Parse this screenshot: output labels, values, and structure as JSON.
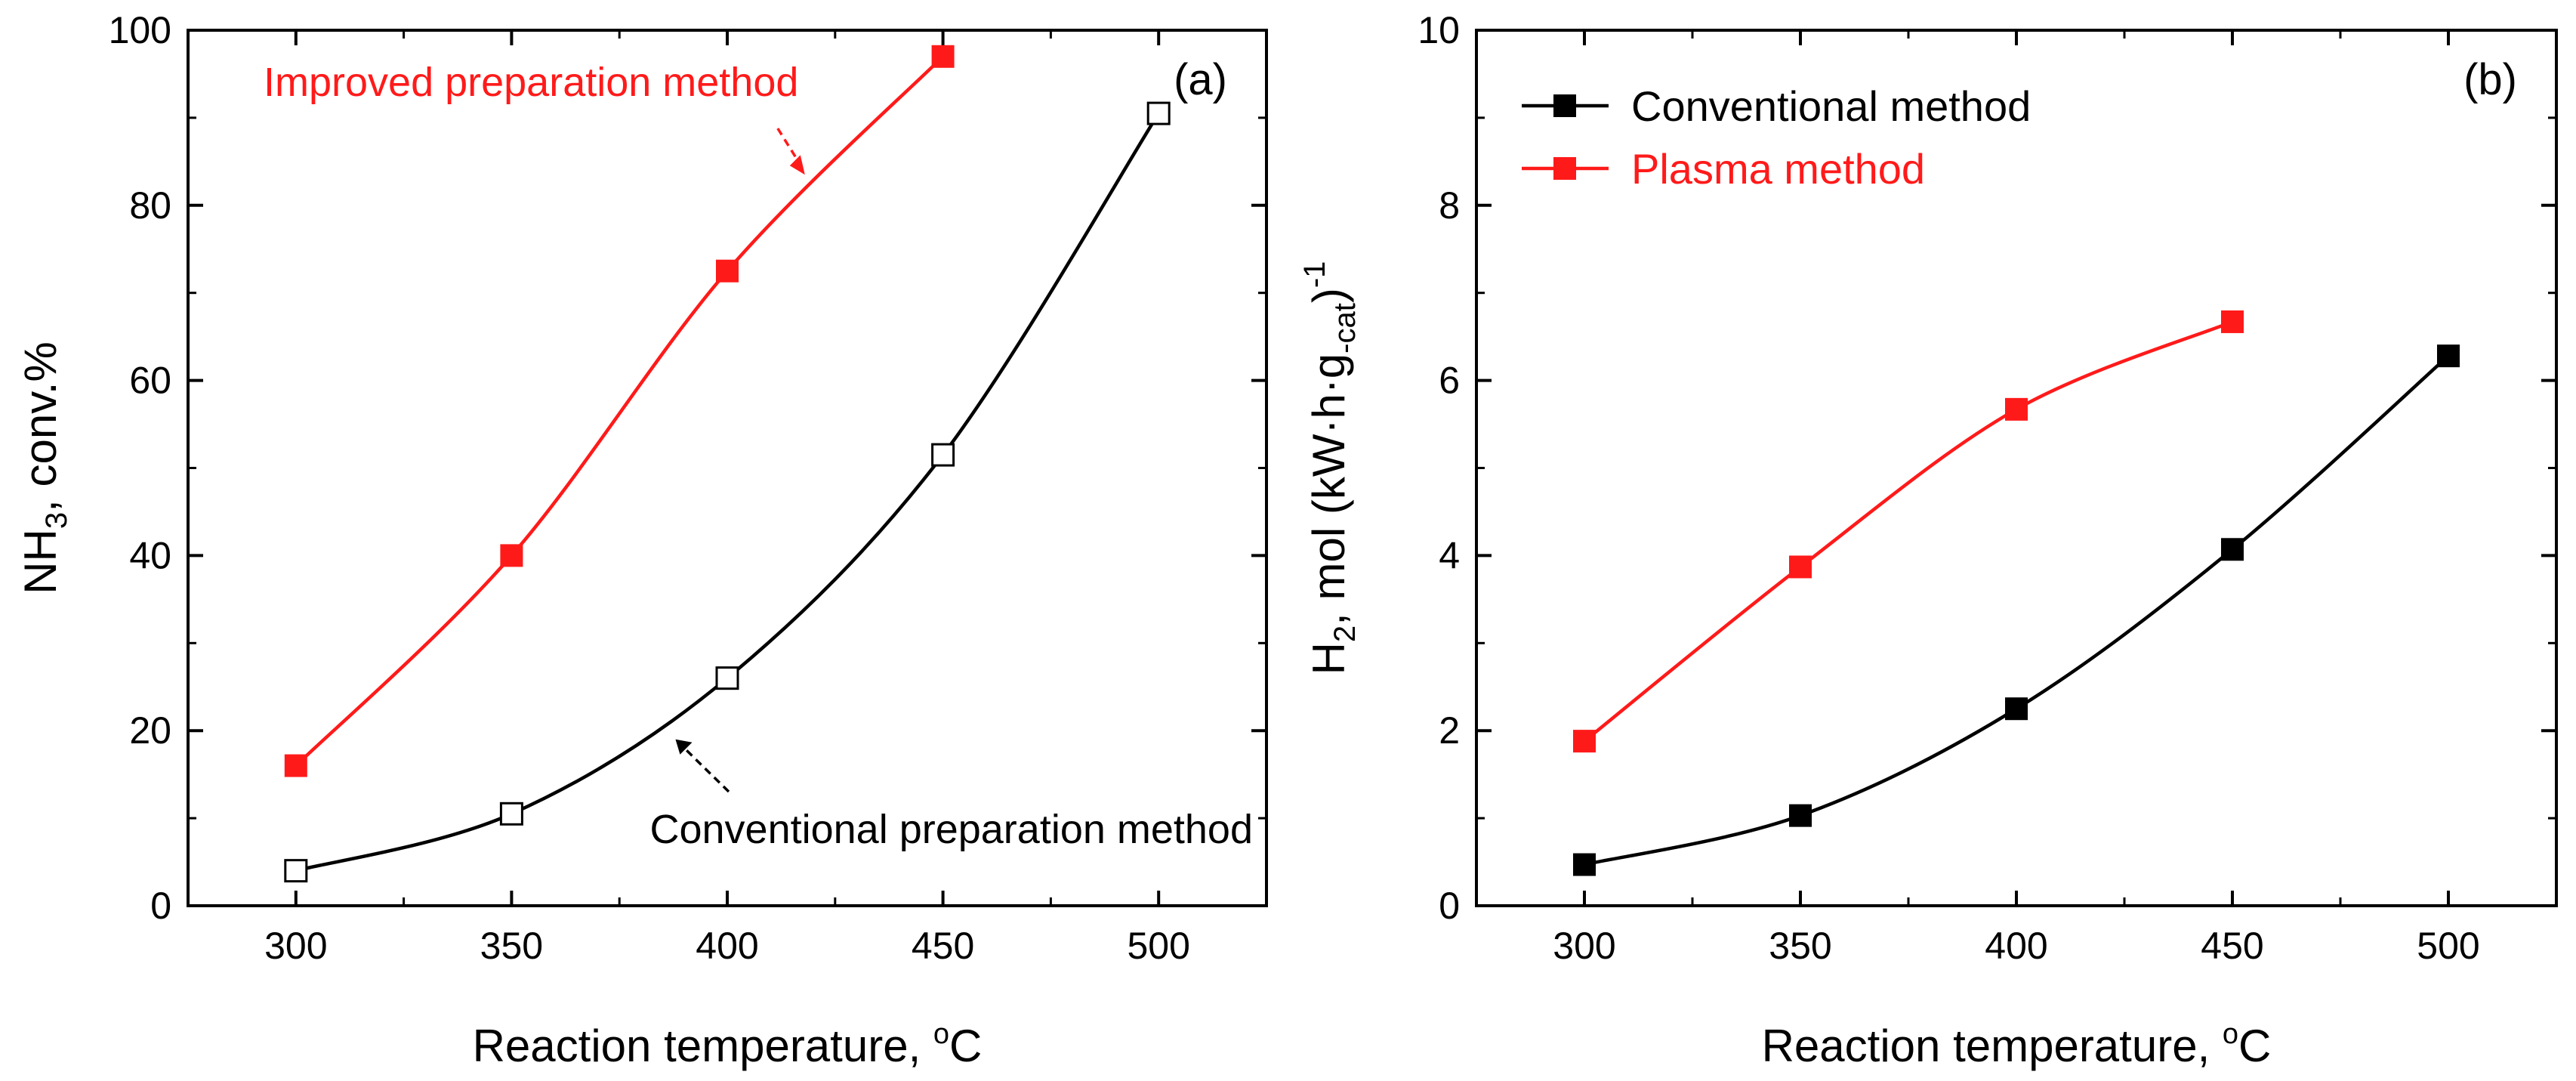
{
  "colors": {
    "axis": "#000000",
    "series_red": "#ff1a1a",
    "series_black": "#000000",
    "hollow_fill": "#ffffff"
  },
  "chart_data": [
    {
      "panel": "(a)",
      "type": "line",
      "xlabel": "Reaction temperature, ",
      "xlabel_unit": "C",
      "xlabel_sup": "o",
      "ylabel": {
        "main": "NH",
        "sub": "3",
        "tail": ", conv.%"
      },
      "xlim": [
        275,
        525
      ],
      "ylim": [
        0,
        100
      ],
      "xticks": [
        300,
        350,
        400,
        450,
        500
      ],
      "yticks": [
        0,
        20,
        40,
        60,
        80,
        100
      ],
      "xtick_labels": [
        "300",
        "350",
        "400",
        "450",
        "500"
      ],
      "ytick_labels": [
        "0",
        "20",
        "40",
        "60",
        "80",
        "100"
      ],
      "series": [
        {
          "name": "Improved preparation method",
          "color": "#ff1a1a",
          "marker": "filled-square",
          "x": [
            300,
            350,
            400,
            450
          ],
          "y": [
            16,
            40,
            72.5,
            97
          ]
        },
        {
          "name": "Conventional preparation method",
          "color": "#000000",
          "marker": "hollow-square",
          "x": [
            300,
            350,
            400,
            450,
            500
          ],
          "y": [
            4,
            10.5,
            26,
            51.5,
            90.5
          ]
        }
      ],
      "annotations": [
        {
          "text": "Improved preparation method",
          "color": "#ff1a1a",
          "arrow_to": [
            418,
            83.5
          ]
        },
        {
          "text": "Conventional preparation method",
          "color": "#000000",
          "arrow_to": [
            388,
            19
          ]
        }
      ]
    },
    {
      "panel": "(b)",
      "type": "line",
      "xlabel": "Reaction temperature, ",
      "xlabel_unit": "C",
      "xlabel_sup": "o",
      "ylabel": {
        "main": "H",
        "sub": "2",
        "tail": ", mol (kW·h·g",
        "sub2": "-cat",
        "close": ")",
        "sup": "-1"
      },
      "xlim": [
        275,
        525
      ],
      "ylim": [
        0,
        10
      ],
      "xticks": [
        300,
        350,
        400,
        450,
        500
      ],
      "yticks": [
        0,
        2,
        4,
        6,
        8,
        10
      ],
      "xtick_labels": [
        "300",
        "350",
        "400",
        "450",
        "500"
      ],
      "ytick_labels": [
        "0",
        "2",
        "4",
        "6",
        "8",
        "10"
      ],
      "legend_position": "top-left",
      "series": [
        {
          "name": "Conventional method",
          "color": "#000000",
          "marker": "filled-square",
          "x": [
            300,
            350,
            400,
            450,
            500
          ],
          "y": [
            0.47,
            1.03,
            2.25,
            4.07,
            6.28
          ]
        },
        {
          "name": "Plasma method",
          "color": "#ff1a1a",
          "marker": "filled-square",
          "x": [
            300,
            350,
            400,
            450
          ],
          "y": [
            1.88,
            3.87,
            5.67,
            6.67
          ]
        }
      ]
    }
  ]
}
